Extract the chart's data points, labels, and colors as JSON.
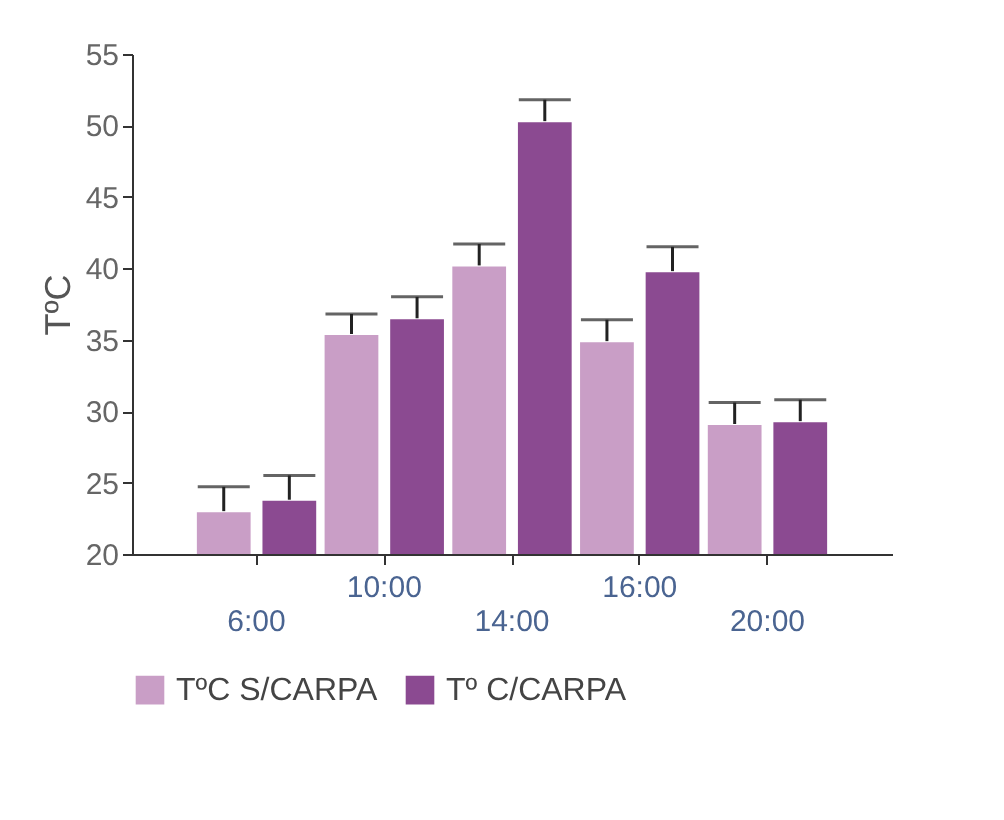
{
  "chart_data": {
    "type": "bar",
    "ylabel": "TºC",
    "categories": [
      "6:00",
      "10:00",
      "14:00",
      "16:00",
      "20:00"
    ],
    "series": [
      {
        "name": "TºC S/CARPA",
        "color": "#c99ec6",
        "values": [
          23.0,
          35.4,
          40.2,
          34.9,
          29.1
        ],
        "errors": [
          [
            23.0,
            24.7
          ],
          [
            35.4,
            36.8
          ],
          [
            40.2,
            41.7
          ],
          [
            34.9,
            36.4
          ],
          [
            29.1,
            30.6
          ]
        ]
      },
      {
        "name": "Tº C/CARPA",
        "color": "#8b4a91",
        "values": [
          23.8,
          36.5,
          50.3,
          39.8,
          29.3
        ],
        "errors": [
          [
            23.8,
            25.5
          ],
          [
            36.5,
            38.0
          ],
          [
            50.3,
            51.8
          ],
          [
            39.8,
            41.5
          ],
          [
            29.3,
            30.8
          ]
        ]
      }
    ],
    "ylim": [
      20,
      55
    ],
    "yticks": [
      20,
      25,
      30,
      35,
      40,
      45,
      50,
      55
    ],
    "grid": false,
    "legend": "bottom"
  }
}
